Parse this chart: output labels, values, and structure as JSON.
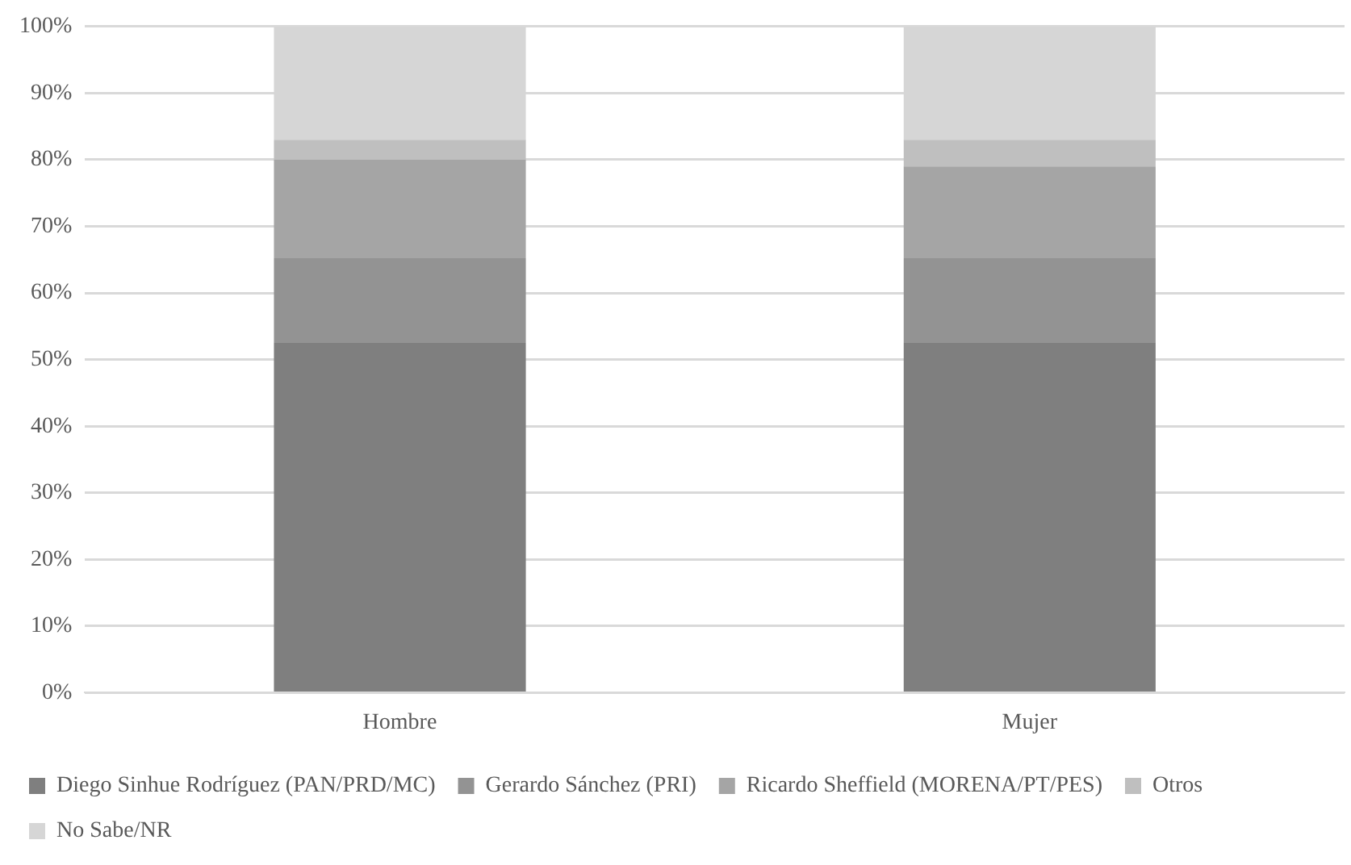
{
  "chart_data": {
    "type": "bar",
    "stacked": true,
    "categories": [
      "Hombre",
      "Mujer"
    ],
    "series": [
      {
        "name": "Diego Sinhue Rodríguez (PAN/PRD/MC)",
        "color": "#7f7f7f",
        "values": [
          52.5,
          52.5
        ]
      },
      {
        "name": "Gerardo Sánchez (PRI)",
        "color": "#939393",
        "values": [
          12.7,
          12.7
        ]
      },
      {
        "name": "Ricardo Sheffield (MORENA/PT/PES)",
        "color": "#a5a5a5",
        "values": [
          14.8,
          13.8
        ]
      },
      {
        "name": "Otros",
        "color": "#bfbfbf",
        "values": [
          3.0,
          4.0
        ]
      },
      {
        "name": "No Sabe/NR",
        "color": "#d6d6d6",
        "values": [
          17.0,
          17.0
        ]
      }
    ],
    "ylim": [
      0,
      100
    ],
    "yticks": [
      {
        "value": 0,
        "label": "0%"
      },
      {
        "value": 10,
        "label": "10%"
      },
      {
        "value": 20,
        "label": "20%"
      },
      {
        "value": 30,
        "label": "30%"
      },
      {
        "value": 40,
        "label": "40%"
      },
      {
        "value": 50,
        "label": "50%"
      },
      {
        "value": 60,
        "label": "60%"
      },
      {
        "value": 70,
        "label": "70%"
      },
      {
        "value": 80,
        "label": "80%"
      },
      {
        "value": 90,
        "label": "90%"
      },
      {
        "value": 100,
        "label": "100%"
      }
    ],
    "grid": "y",
    "legend": "bottom"
  }
}
